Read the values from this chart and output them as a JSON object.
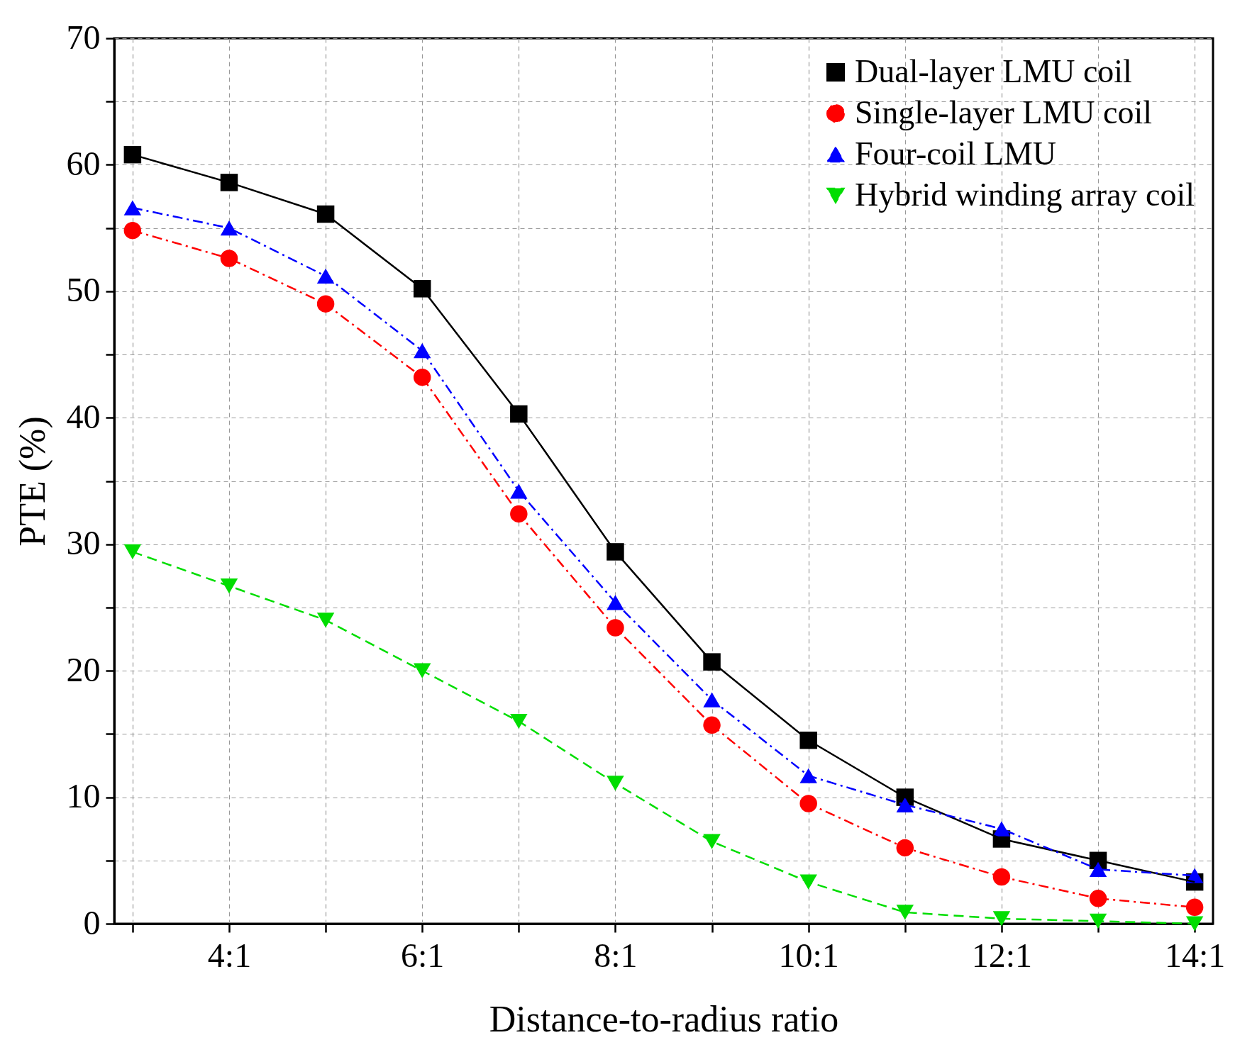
{
  "chart_data": {
    "type": "line",
    "xlabel": "Distance-to-radius ratio",
    "ylabel": "PTE (%)",
    "categories": [
      null,
      "4:1",
      null,
      "6:1",
      null,
      "8:1",
      null,
      "10:1",
      null,
      "12:1",
      null,
      "14:1"
    ],
    "ylim": [
      0,
      70
    ],
    "yticks": [
      0,
      {
        "value": 5,
        "label": null
      },
      10,
      {
        "value": 15,
        "label": null
      },
      20,
      {
        "value": 25,
        "label": null
      },
      30,
      {
        "value": 35,
        "label": null
      },
      40,
      {
        "value": 45,
        "label": null
      },
      50,
      {
        "value": 55,
        "label": null
      },
      60,
      {
        "value": 65,
        "label": null
      },
      70
    ],
    "grid": true,
    "legend": "top right",
    "series": [
      {
        "name": "Dual-layer LMU coil",
        "color": "#000000",
        "marker": "square",
        "line_style": "solid",
        "values": [
          60.8,
          58.6,
          56.1,
          50.2,
          40.3,
          29.4,
          20.7,
          14.5,
          10.0,
          6.7,
          5.0,
          3.3
        ]
      },
      {
        "name": "Single-layer LMU coil",
        "color": "#ff0000",
        "marker": "circle",
        "line_style": "dashdot",
        "values": [
          54.8,
          52.6,
          49.0,
          43.2,
          32.4,
          23.4,
          15.7,
          9.5,
          6.0,
          3.7,
          2.0,
          1.3
        ]
      },
      {
        "name": "Four-coil LMU",
        "color": "#0000ff",
        "marker": "triangle",
        "line_style": "dashdot",
        "values": [
          56.6,
          55.0,
          51.2,
          45.3,
          34.2,
          25.4,
          17.7,
          11.7,
          9.4,
          7.5,
          4.3,
          3.8
        ]
      },
      {
        "name": "Hybrid winding array coil",
        "color": "#00dd00",
        "marker": "triangle-down",
        "line_style": "dashed",
        "values": [
          29.4,
          26.7,
          24.0,
          20.0,
          16.0,
          11.1,
          6.5,
          3.3,
          0.9,
          0.4,
          0.2,
          0.0
        ]
      }
    ]
  }
}
